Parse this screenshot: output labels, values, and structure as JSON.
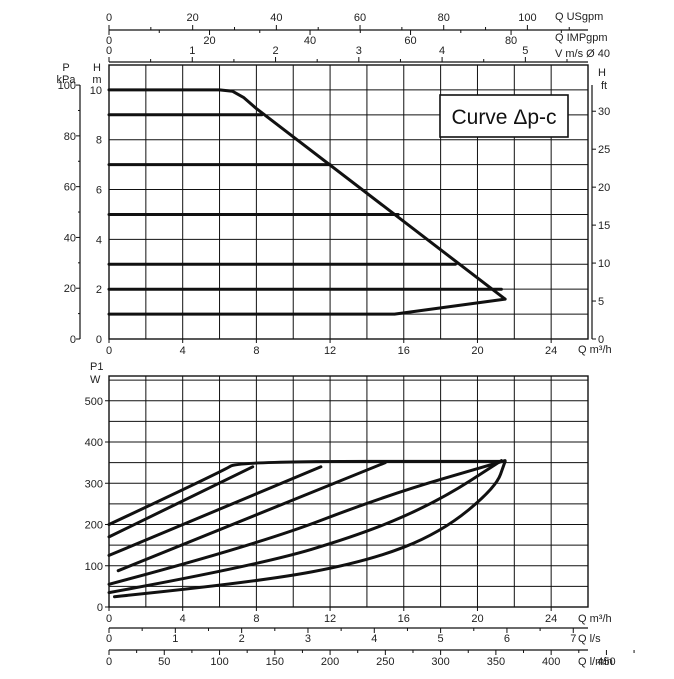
{
  "chart_data": [
    {
      "type": "line",
      "title": "Curve Δp-c",
      "x_label": "Q m³/h",
      "x_ticks": [
        "0",
        "4",
        "8",
        "12",
        "16",
        "20",
        "24"
      ],
      "xlim": [
        0,
        26
      ],
      "y_left_outer_label_top": "P",
      "y_left_outer_label_bottom": "kPa",
      "y_left_outer_ticks": [
        "0",
        "20",
        "40",
        "60",
        "80",
        "100"
      ],
      "y_left_inner_label_top": "H",
      "y_left_inner_label_bottom": "m",
      "y_left_inner_ticks": [
        "0",
        "2",
        "4",
        "6",
        "8",
        "10"
      ],
      "ylim_m": [
        0,
        11
      ],
      "y_right_label_top": "H",
      "y_right_label_bottom": "ft",
      "y_right_ticks": [
        "0",
        "5",
        "10",
        "15",
        "20",
        "25",
        "30"
      ],
      "top_axes": [
        {
          "label": "Q USgpm",
          "ticks": [
            "0",
            "20",
            "40",
            "60",
            "80",
            "100"
          ]
        },
        {
          "label": "Q IMPgpm",
          "ticks": [
            "0",
            "20",
            "40",
            "60",
            "80"
          ]
        },
        {
          "label": "V m/s Ø 40",
          "ticks": [
            "0",
            "1",
            "2",
            "3",
            "4",
            "5"
          ]
        }
      ],
      "series": [
        {
          "x": [
            0,
            15.5,
            16.5,
            21.5
          ],
          "y": [
            1,
            1,
            1.1,
            1.6
          ]
        },
        {
          "x": [
            0,
            21.3
          ],
          "y": [
            2,
            2
          ]
        },
        {
          "x": [
            0,
            18.8
          ],
          "y": [
            3,
            3
          ]
        },
        {
          "x": [
            0,
            15.7
          ],
          "y": [
            5,
            5
          ]
        },
        {
          "x": [
            0,
            12
          ],
          "y": [
            7,
            7
          ]
        },
        {
          "x": [
            0,
            8.3
          ],
          "y": [
            9,
            9
          ]
        },
        {
          "x": [
            0,
            6,
            6.7,
            7.3,
            8,
            21.5
          ],
          "y": [
            10,
            10,
            9.95,
            9.7,
            9.25,
            1.6
          ]
        }
      ]
    },
    {
      "type": "line",
      "x_label": "Q m³/h",
      "x_ticks": [
        "0",
        "4",
        "8",
        "12",
        "16",
        "20",
        "24"
      ],
      "xlim": [
        0,
        26
      ],
      "y_label_top": "P1",
      "y_label_bottom": "W",
      "y_ticks": [
        "0",
        "100",
        "200",
        "300",
        "400",
        "500"
      ],
      "ylim": [
        0,
        560
      ],
      "bottom_axes": [
        {
          "label": "Q l/s",
          "ticks": [
            "0",
            "1",
            "2",
            "3",
            "4",
            "5",
            "6",
            "7"
          ]
        },
        {
          "label": "Q l/min",
          "ticks": [
            "0",
            "50",
            "100",
            "150",
            "200",
            "250",
            "300",
            "350",
            "400",
            "450"
          ]
        }
      ],
      "series": [
        {
          "x": [
            0,
            6.2,
            7,
            21.5
          ],
          "y": [
            200,
            330,
            353,
            353
          ]
        },
        {
          "x": [
            0,
            7.8
          ],
          "y": [
            170,
            340
          ]
        },
        {
          "x": [
            0,
            11.5
          ],
          "y": [
            125,
            340
          ]
        },
        {
          "x": [
            0.5,
            15
          ],
          "y": [
            88,
            350
          ]
        },
        {
          "x": [
            0,
            8,
            15,
            21.5
          ],
          "y": [
            55,
            150,
            270,
            355
          ]
        },
        {
          "x": [
            0,
            8,
            14,
            18,
            21.3
          ],
          "y": [
            35,
            100,
            180,
            260,
            355
          ]
        },
        {
          "x": [
            0.3,
            8,
            14,
            18,
            21,
            21.5
          ],
          "y": [
            25,
            60,
            110,
            180,
            290,
            353
          ]
        }
      ]
    }
  ]
}
